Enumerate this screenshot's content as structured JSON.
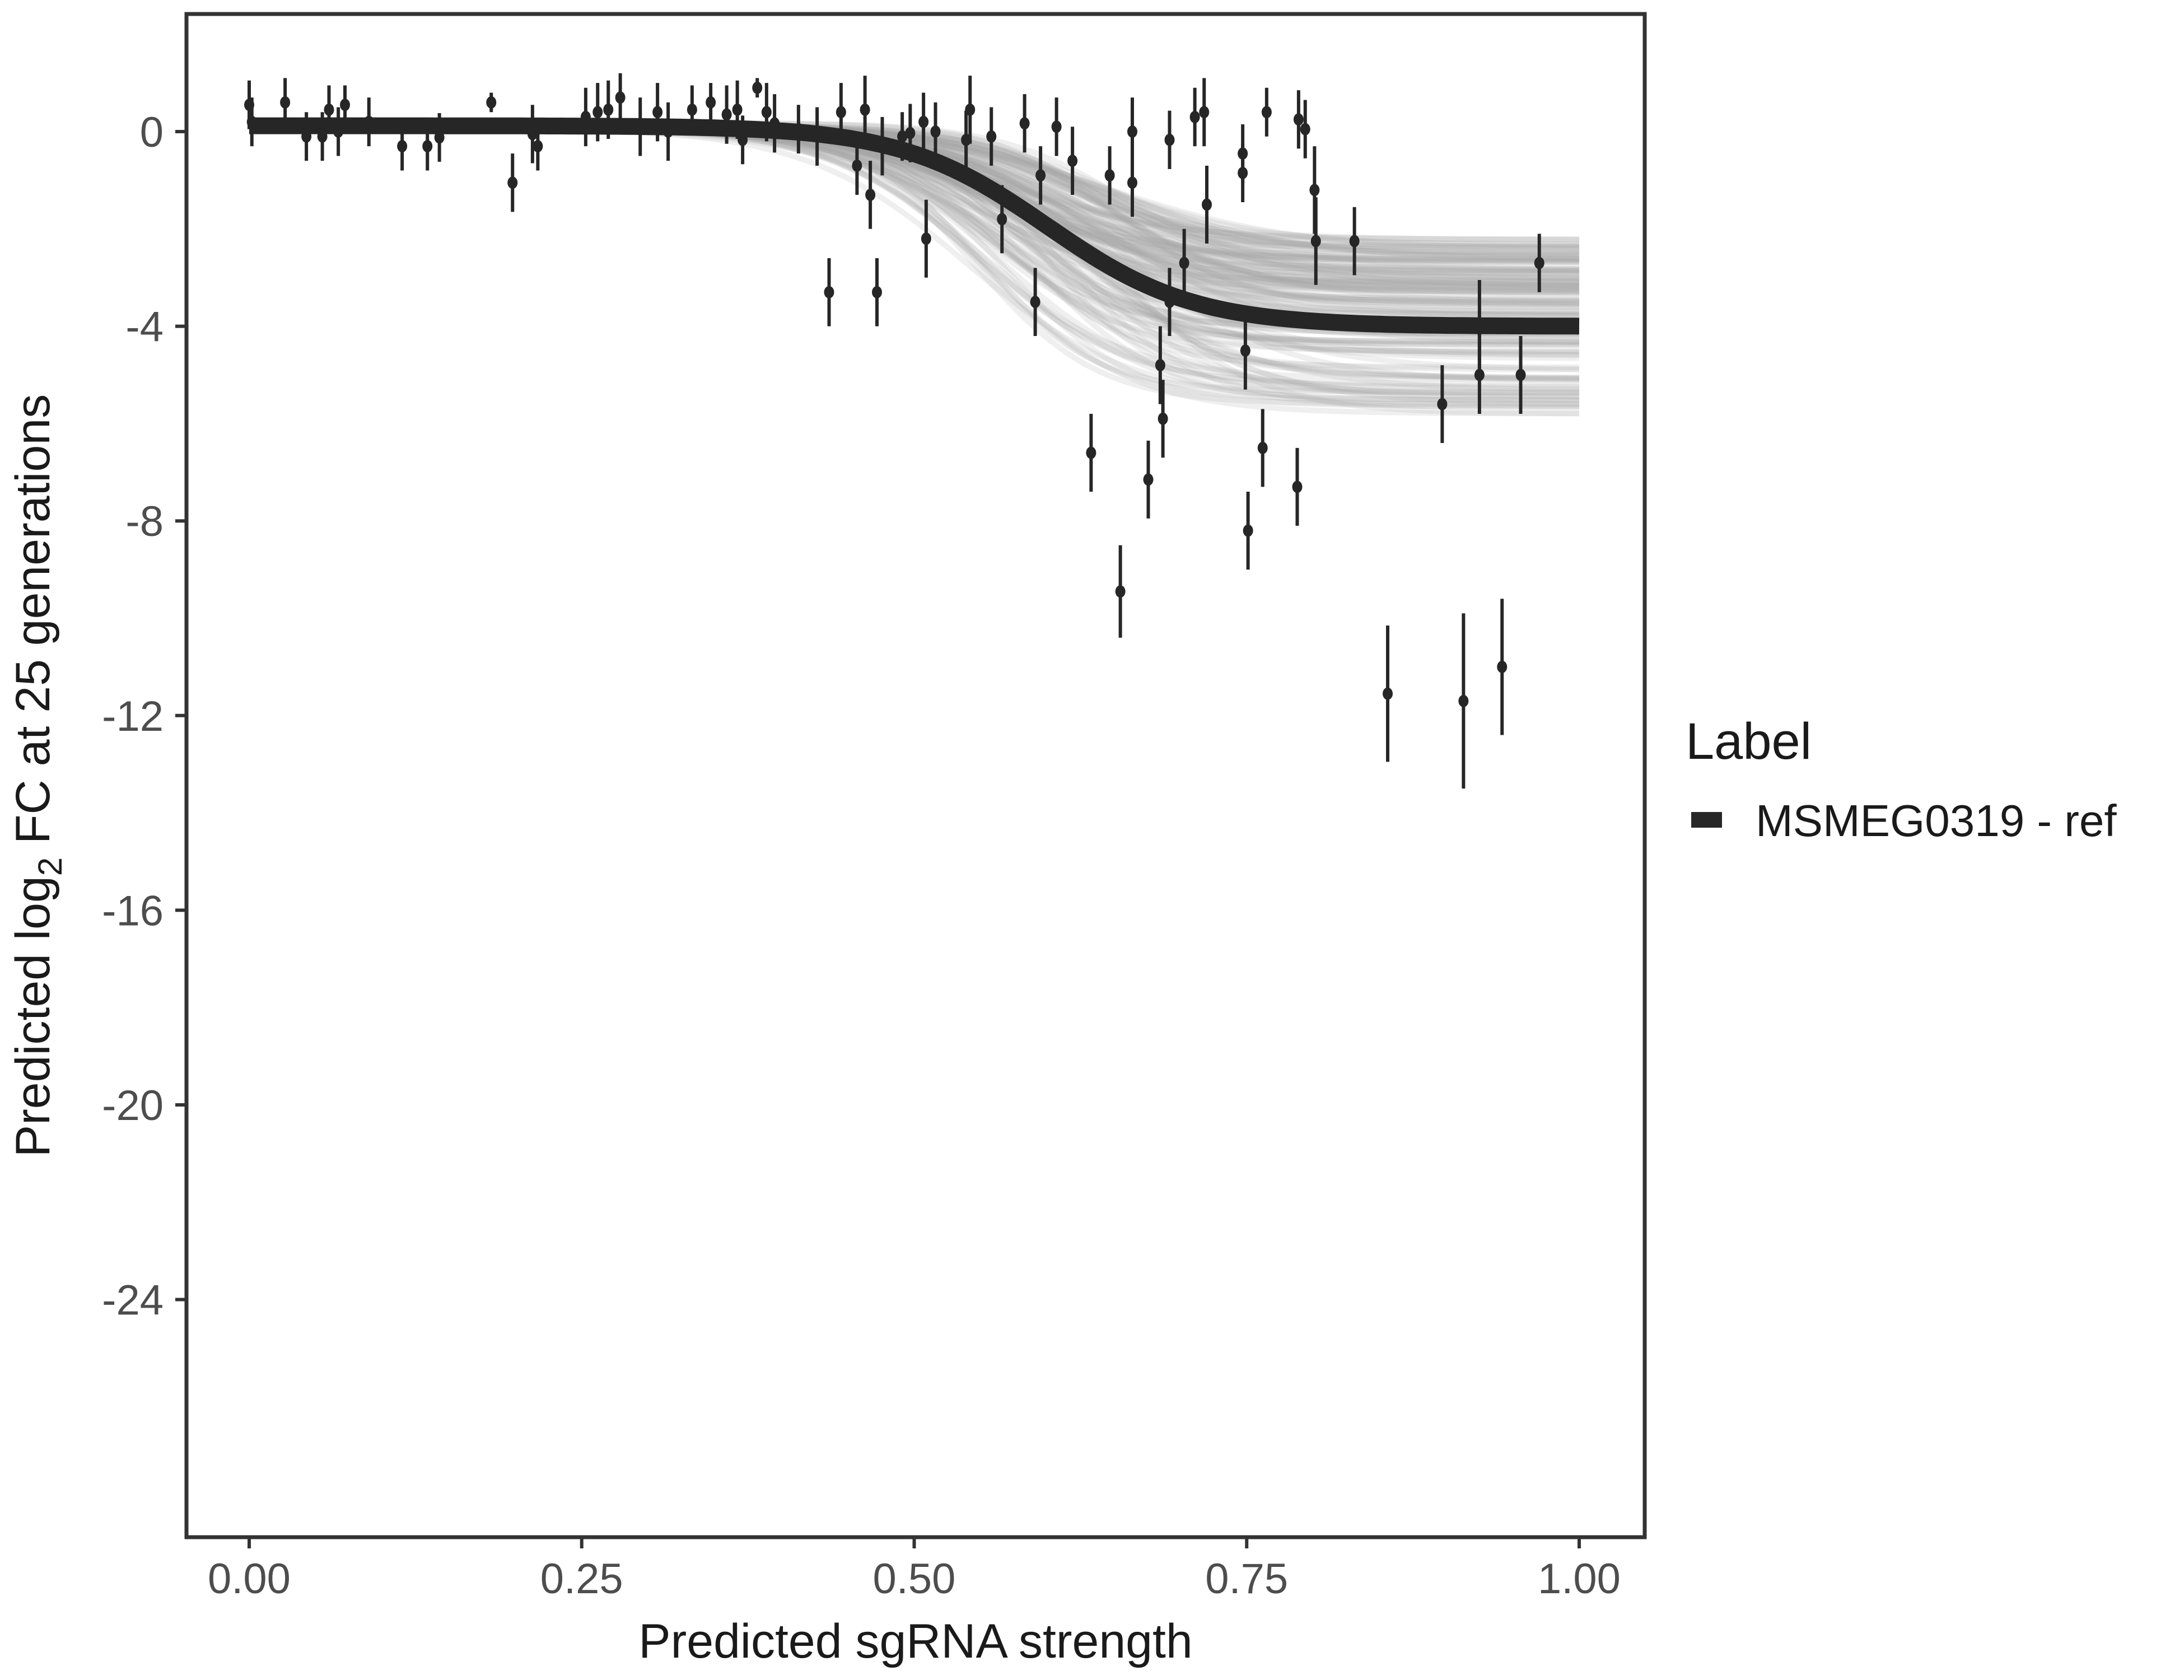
{
  "chart_data": {
    "type": "scatter",
    "title": "",
    "xlabel": "Predicted sgRNA strength",
    "ylabel_prefix": "Predicted  log",
    "ylabel_sub": "2",
    "ylabel_suffix": " FC at 25 generations",
    "xlim": [
      -0.095,
      1.0
    ],
    "ylim": [
      -28.9,
      2.4
    ],
    "xticks": [
      0,
      0.25,
      0.5,
      0.75,
      1.0
    ],
    "xtick_labels": [
      "0.00",
      "0.25",
      "0.50",
      "0.75",
      "1.00"
    ],
    "yticks": [
      0,
      -4,
      -8,
      -12,
      -16,
      -20,
      -24
    ],
    "ytick_labels": [
      "0",
      "-4",
      "-8",
      "-12",
      "-16",
      "-20",
      "-24"
    ],
    "grid": false,
    "legend": {
      "title": "Label",
      "placement": "right",
      "entries": [
        {
          "label": "MSMEG0319 - ref",
          "color": "#262626"
        }
      ]
    },
    "fit": {
      "model": "logistic",
      "top": 0.12,
      "bottom": -4.0,
      "midpoint": 0.6,
      "scale": 0.055,
      "line_color": "#262626",
      "ribbon_color": "#a6a6a6"
    },
    "points": {
      "x": [
        0.0,
        0.002,
        0.027,
        0.043,
        0.055,
        0.06,
        0.067,
        0.072,
        0.09,
        0.115,
        0.134,
        0.143,
        0.182,
        0.198,
        0.213,
        0.217,
        0.253,
        0.262,
        0.27,
        0.279,
        0.294,
        0.307,
        0.315,
        0.333,
        0.347,
        0.359,
        0.367,
        0.371,
        0.382,
        0.389,
        0.395,
        0.413,
        0.427,
        0.436,
        0.445,
        0.457,
        0.463,
        0.467,
        0.472,
        0.476,
        0.491,
        0.497,
        0.507,
        0.509,
        0.516,
        0.539,
        0.542,
        0.558,
        0.566,
        0.583,
        0.591,
        0.595,
        0.607,
        0.619,
        0.633,
        0.647,
        0.655,
        0.664,
        0.664,
        0.676,
        0.685,
        0.687,
        0.692,
        0.692,
        0.703,
        0.711,
        0.718,
        0.72,
        0.747,
        0.747,
        0.749,
        0.751,
        0.762,
        0.765,
        0.788,
        0.789,
        0.794,
        0.801,
        0.802,
        0.831,
        0.856,
        0.897,
        0.913,
        0.925,
        0.925,
        0.942,
        0.956,
        0.97
      ],
      "y": [
        0.55,
        0.2,
        0.6,
        -0.1,
        -0.1,
        0.45,
        0,
        0.55,
        0.2,
        -0.3,
        -0.3,
        -0.12,
        0.6,
        -1.05,
        -0.05,
        -0.3,
        0.3,
        0.4,
        0.45,
        0.7,
        0.1,
        0.4,
        0,
        0.45,
        0.6,
        0.35,
        0.45,
        -0.17,
        0.9,
        0.4,
        0.17,
        0.05,
        -0.1,
        -3.3,
        0.4,
        -0.7,
        0.45,
        -1.3,
        -3.3,
        -0.3,
        -0.1,
        -0.03,
        0.2,
        -2.2,
        0,
        -0.17,
        0.45,
        -0.1,
        -1.8,
        0.17,
        -3.5,
        -0.9,
        0.1,
        -0.6,
        -6.6,
        -0.9,
        -9.45,
        0,
        -1.05,
        -7.15,
        -4.8,
        -5.9,
        -0.17,
        -3.5,
        -2.7,
        0.3,
        0.4,
        -1.5,
        -0.45,
        -0.85,
        -4.5,
        -8.2,
        -6.5,
        0.4,
        -7.3,
        0.25,
        0.05,
        -1.2,
        -2.25,
        -2.25,
        -11.55,
        -5.6,
        -11.7,
        -4.05,
        -5.0,
        -11.0,
        -5.0,
        -2.7
      ],
      "err": [
        0.5,
        0.5,
        0.5,
        0.5,
        0.5,
        0.5,
        0.5,
        0.4,
        0.5,
        0.5,
        0.5,
        0.5,
        0.2,
        0.6,
        0.6,
        0.5,
        0.6,
        0.6,
        0.6,
        0.5,
        0.6,
        0.6,
        0.6,
        0.5,
        0.4,
        0.6,
        0.6,
        0.5,
        0.2,
        0.6,
        0.6,
        0.5,
        0.6,
        0.7,
        0.6,
        0.6,
        0.7,
        0.7,
        0.7,
        0.6,
        0.5,
        0.6,
        0.6,
        0.8,
        0.6,
        0.6,
        0.7,
        0.6,
        0.7,
        0.6,
        0.7,
        0.6,
        0.6,
        0.7,
        0.8,
        0.6,
        0.95,
        0.7,
        0.7,
        0.8,
        0.8,
        0.8,
        0.6,
        0.7,
        0.7,
        0.6,
        0.7,
        0.8,
        0.6,
        0.6,
        0.8,
        0.8,
        0.8,
        0.5,
        0.8,
        0.6,
        0.6,
        0.9,
        0.9,
        0.7,
        1.4,
        0.8,
        1.8,
        1.0,
        0.8,
        1.4,
        0.8,
        0.6
      ]
    }
  }
}
